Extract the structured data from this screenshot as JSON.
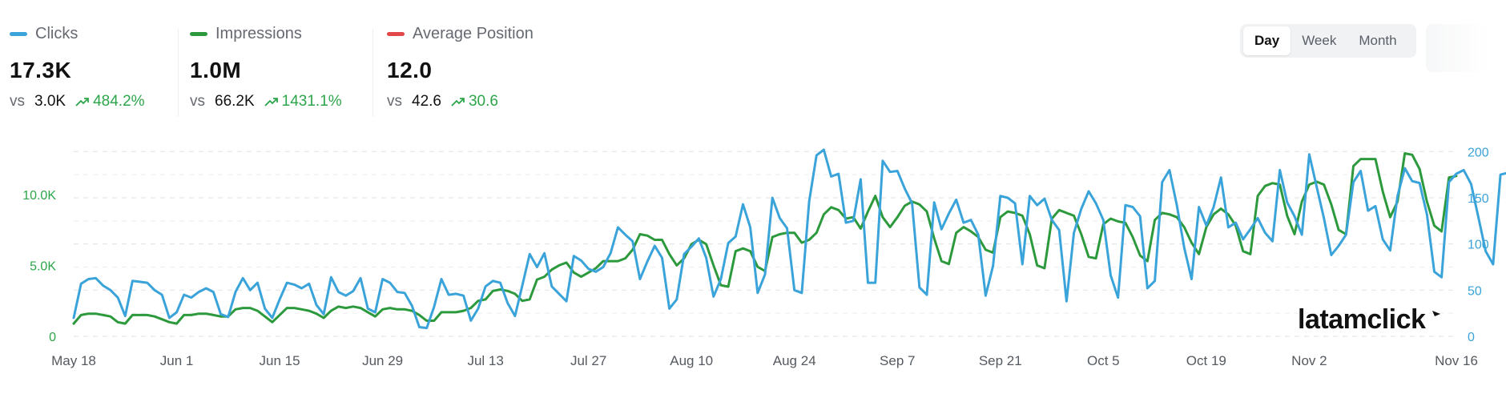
{
  "metrics": [
    {
      "label": "Clicks",
      "color": "#3aa3d9",
      "value": "17.3K",
      "vs": "vs",
      "previous": "3.0K",
      "change": "484.2%"
    },
    {
      "label": "Impressions",
      "color": "#2c9a3c",
      "value": "1.0M",
      "vs": "vs",
      "previous": "66.2K",
      "change": "1431.1%"
    },
    {
      "label": "Average Position",
      "color": "#e2474a",
      "value": "12.0",
      "vs": "vs",
      "previous": "42.6",
      "change": "30.6"
    }
  ],
  "range_toggle": {
    "options": [
      "Day",
      "Week",
      "Month"
    ],
    "selected": "Day"
  },
  "watermark": "latamclick",
  "chart_data": {
    "type": "line",
    "x_tick_labels": [
      "May 18",
      "Jun 1",
      "Jun 15",
      "Jun 29",
      "Jul 13",
      "Jul 27",
      "Aug 10",
      "Aug 24",
      "Sep 7",
      "Sep 21",
      "Oct 5",
      "Oct 19",
      "Nov 2",
      "Nov 16"
    ],
    "left_axis": {
      "ticks": [
        0,
        5000,
        10000
      ],
      "tick_labels": [
        "0",
        "5.0K",
        "10.0K"
      ],
      "range": [
        0,
        14000
      ],
      "color": "#2ca54a"
    },
    "right_axis": {
      "ticks": [
        0,
        50,
        100,
        150,
        200
      ],
      "tick_labels": [
        "0",
        "50",
        "100",
        "150",
        "200"
      ],
      "range": [
        0,
        215
      ],
      "color": "#3aa3d9"
    },
    "grid": true,
    "series": [
      {
        "name": "Impressions",
        "axis": "left",
        "color": "#2c9a3c",
        "values": [
          0.9,
          1.5,
          1.6,
          1.6,
          1.5,
          1.4,
          1.0,
          0.9,
          1.5,
          1.5,
          1.5,
          1.4,
          1.2,
          1.0,
          0.9,
          1.5,
          1.5,
          1.6,
          1.6,
          1.5,
          1.4,
          1.4,
          1.9,
          2.0,
          2.0,
          1.8,
          1.4,
          1.0,
          1.5,
          2.0,
          2.0,
          1.9,
          1.8,
          1.6,
          1.3,
          1.8,
          2.1,
          2.0,
          2.1,
          2.0,
          1.7,
          1.4,
          1.9,
          2.0,
          1.9,
          1.9,
          1.8,
          1.5,
          1.1,
          1.1,
          1.7,
          1.7,
          1.7,
          1.8,
          2.0,
          2.5,
          2.6,
          3.2,
          3.3,
          3.2,
          3.0,
          2.5,
          2.6,
          4.0,
          4.2,
          4.7,
          5.0,
          5.2,
          4.5,
          4.2,
          4.5,
          4.8,
          5.3,
          5.3,
          5.3,
          5.5,
          6.1,
          7.2,
          7.1,
          6.8,
          6.8,
          5.8,
          5.0,
          5.5,
          6.5,
          6.8,
          6.5,
          5.0,
          3.6,
          3.5,
          6.0,
          6.2,
          6.0,
          4.9,
          4.6,
          7.0,
          7.2,
          7.3,
          7.3,
          6.6,
          6.8,
          7.3,
          8.6,
          9.1,
          8.9,
          8.3,
          8.4,
          7.6,
          8.8,
          9.9,
          8.4,
          7.7,
          8.4,
          9.2,
          9.5,
          9.3,
          8.8,
          6.9,
          5.3,
          5.1,
          7.3,
          7.7,
          7.4,
          7.0,
          6.1,
          5.9,
          8.4,
          8.8,
          8.7,
          8.5,
          7.2,
          5.0,
          4.8,
          8.3,
          8.9,
          8.7,
          8.5,
          7.2,
          5.6,
          5.5,
          7.9,
          8.3,
          8.1,
          8.0,
          7.0,
          5.7,
          5.3,
          8.2,
          8.7,
          8.6,
          8.4,
          7.7,
          6.6,
          5.8,
          7.7,
          8.6,
          9.0,
          8.6,
          7.8,
          6.0,
          5.8,
          9.9,
          10.6,
          10.8,
          10.7,
          8.5,
          7.2,
          9.5,
          10.7,
          10.9,
          10.7,
          9.3,
          7.5,
          7.2,
          12.0,
          12.5,
          12.5,
          12.5,
          10.2,
          8.4,
          9.5,
          12.9,
          12.8,
          11.8,
          9.5,
          7.8,
          7.4,
          11.2,
          11.3
        ]
      },
      {
        "name": "Clicks",
        "axis": "right",
        "color": "#3aa3d9",
        "values": [
          20,
          57,
          62,
          63,
          55,
          50,
          42,
          22,
          60,
          59,
          58,
          50,
          45,
          20,
          26,
          45,
          42,
          48,
          52,
          48,
          24,
          21,
          48,
          63,
          50,
          58,
          30,
          20,
          40,
          58,
          56,
          52,
          57,
          34,
          24,
          64,
          48,
          44,
          49,
          63,
          30,
          26,
          62,
          58,
          48,
          47,
          33,
          10,
          9,
          32,
          62,
          45,
          46,
          44,
          17,
          30,
          54,
          60,
          58,
          36,
          22,
          55,
          89,
          75,
          90,
          54,
          46,
          38,
          87,
          82,
          73,
          70,
          75,
          90,
          118,
          110,
          103,
          62,
          81,
          98,
          85,
          30,
          40,
          89,
          97,
          106,
          85,
          43,
          62,
          101,
          108,
          143,
          118,
          47,
          67,
          150,
          128,
          117,
          50,
          47,
          146,
          196,
          202,
          173,
          176,
          123,
          125,
          170,
          58,
          58,
          190,
          178,
          179,
          160,
          144,
          53,
          45,
          145,
          116,
          133,
          148,
          123,
          126,
          110,
          44,
          76,
          152,
          150,
          144,
          78,
          152,
          142,
          149,
          126,
          115,
          38,
          112,
          138,
          157,
          144,
          126,
          66,
          42,
          142,
          140,
          130,
          52,
          60,
          167,
          180,
          142,
          96,
          62,
          140,
          120,
          140,
          172,
          118,
          123,
          105,
          116,
          128,
          112,
          103,
          180,
          145,
          130,
          110,
          197,
          162,
          128,
          88,
          98,
          110,
          167,
          179,
          136,
          141,
          105,
          93,
          152,
          182,
          168,
          166,
          132,
          70,
          64,
          167,
          176,
          180,
          165,
          129,
          92,
          78,
          175,
          177
        ]
      }
    ],
    "x_index_of_first_tick": 0,
    "points_per_tick": 14
  }
}
